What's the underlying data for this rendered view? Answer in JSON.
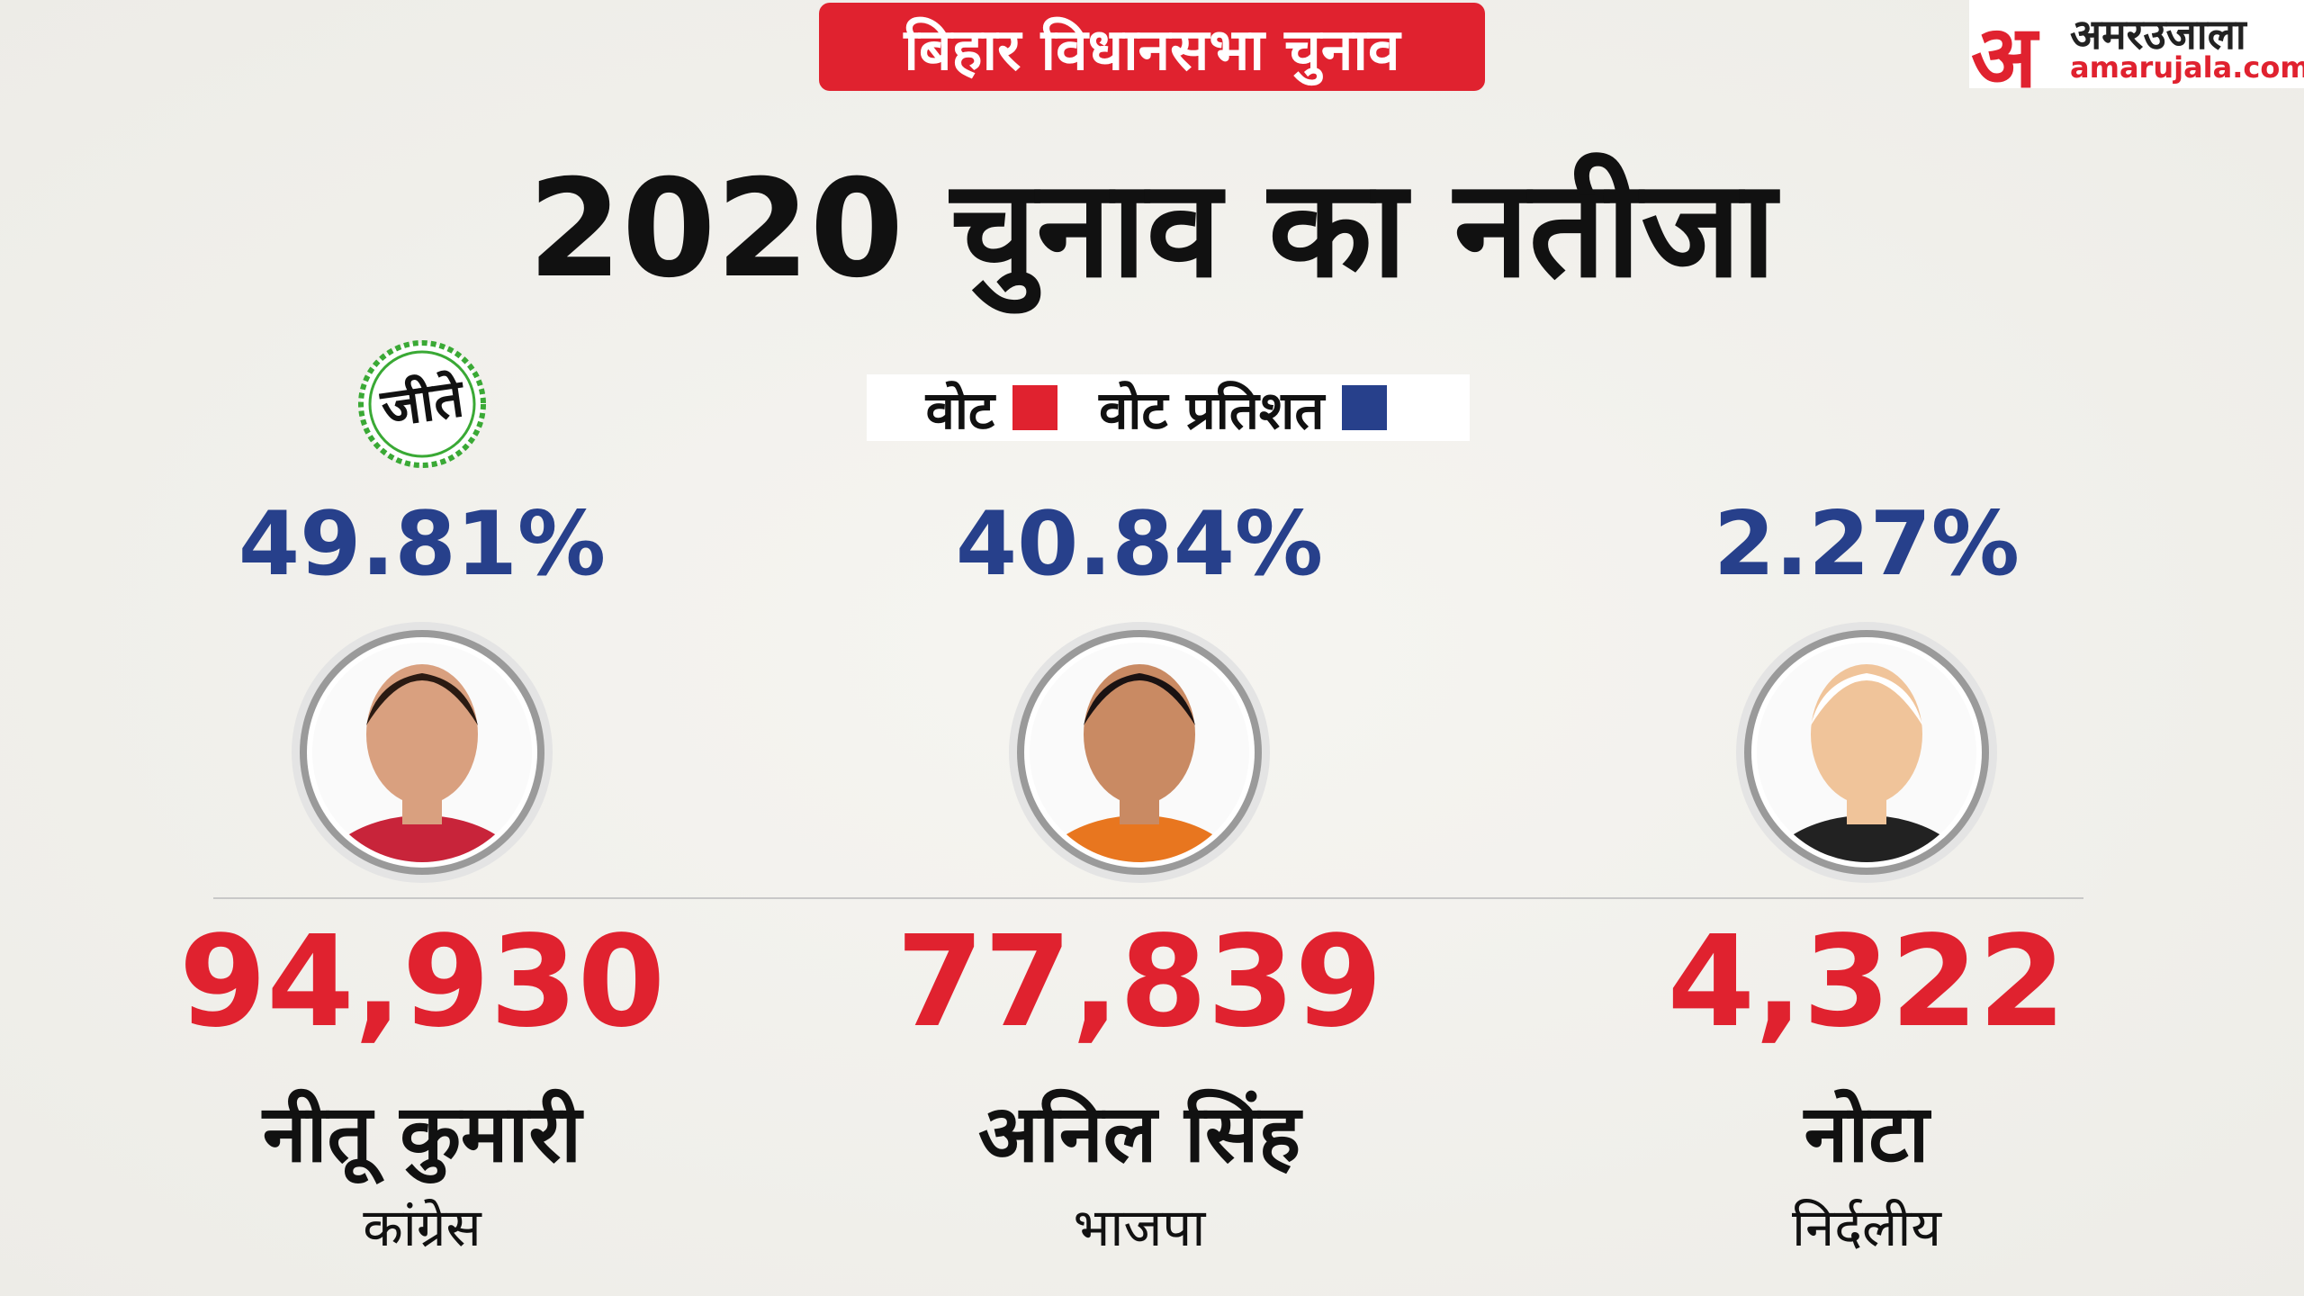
{
  "header": {
    "badge": "बिहार विधानसभा चुनाव"
  },
  "logo": {
    "mark": "अ",
    "name": "अमरउजाला",
    "url": "amarujala.com"
  },
  "title": "2020 चुनाव का नतीजा",
  "legend": [
    {
      "label": "वोट"
    },
    {
      "label": "वोट प्रतिशत"
    }
  ],
  "winner_badge": "जीते",
  "candidates": [
    {
      "percent": "49.81%",
      "votes": "94,930",
      "name": "नीतू कुमारी",
      "party": "कांग्रेस"
    },
    {
      "percent": "40.84%",
      "votes": "77,839",
      "name": "अनिल सिंह",
      "party": "भाजपा"
    },
    {
      "percent": "2.27%",
      "votes": "4,322",
      "name": "नोटा",
      "party": "निर्दलीय"
    }
  ]
}
